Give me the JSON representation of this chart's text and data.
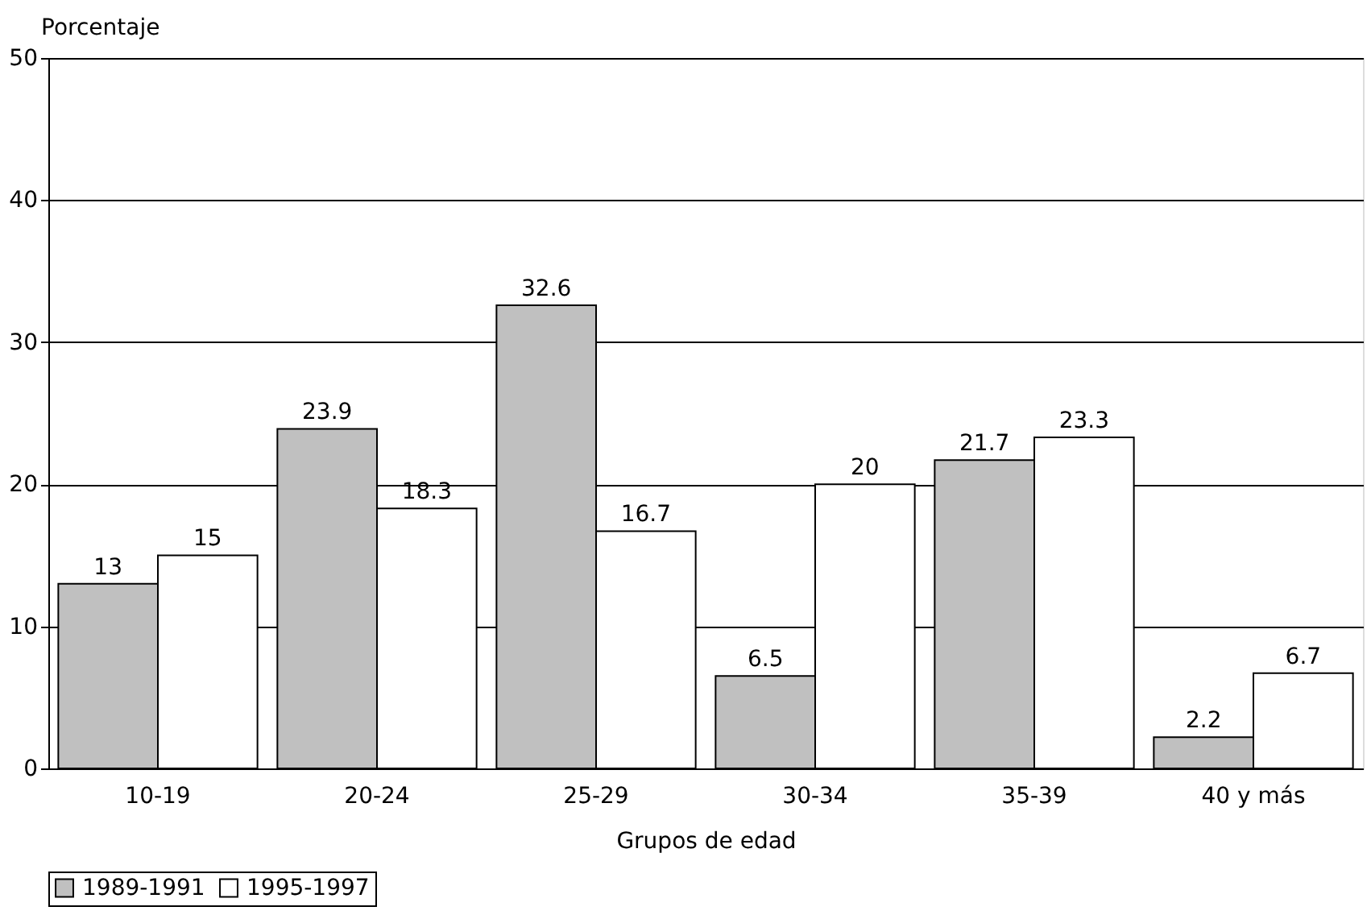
{
  "chart_data": {
    "type": "bar",
    "xlabel": "Grupos de edad",
    "ylabel": "Porcentaje",
    "categories": [
      "10-19",
      "20-24",
      "25-29",
      "30-34",
      "35-39",
      "40 y más"
    ],
    "series": [
      {
        "name": "1989-1991",
        "color": "#c0c0c0",
        "values": [
          13,
          23.9,
          32.6,
          6.5,
          21.7,
          2.2
        ]
      },
      {
        "name": "1995-1997",
        "color": "#ffffff",
        "values": [
          15,
          18.3,
          16.7,
          20,
          23.3,
          6.7
        ]
      }
    ],
    "ylim": [
      0,
      50
    ],
    "yticks": [
      0,
      10,
      20,
      30,
      40,
      50
    ],
    "grid": "y",
    "legend": "bottom",
    "data_labels": true
  }
}
